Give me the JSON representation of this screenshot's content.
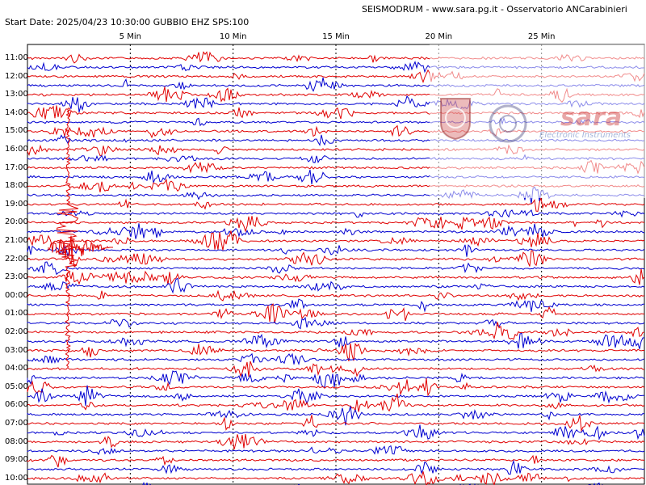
{
  "header": {
    "right_title": "SEISMODRUM - www.sara.pg.it - Osservatorio ANCarabinieri",
    "start_info": "Start Date: 2025/04/23 10:30:00 GUBBIO   EHZ  SPS:100"
  },
  "minute_axis": {
    "labels": [
      "5 Min",
      "10 Min",
      "15 Min",
      "20 Min",
      "25 Min"
    ],
    "minutes": [
      5,
      10,
      15,
      20,
      25
    ],
    "total_minutes": 30
  },
  "hour_labels": [
    "11:00",
    "12:00",
    "13:00",
    "14:00",
    "15:00",
    "16:00",
    "17:00",
    "18:00",
    "19:00",
    "20:00",
    "21:00",
    "22:00",
    "23:00",
    "00:00",
    "01:00",
    "02:00",
    "03:00",
    "04:00",
    "05:00",
    "06:00",
    "07:00",
    "08:00",
    "09:00",
    "10:00"
  ],
  "trace_colors": {
    "a": "#e00000",
    "b": "#0000d0"
  },
  "watermark": {
    "brand": "sara",
    "subtitle": "Electronic Instruments"
  }
}
